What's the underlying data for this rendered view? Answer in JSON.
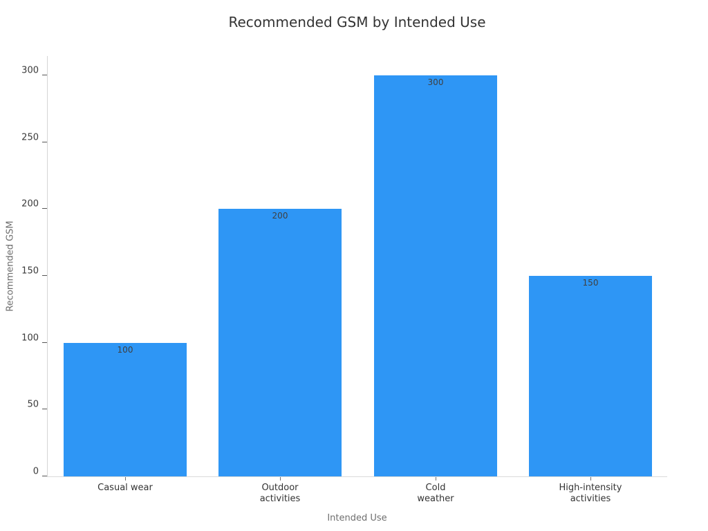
{
  "figure": {
    "background_color": "#ffffff"
  },
  "chart_data": {
    "type": "bar",
    "title": "Recommended GSM by Intended Use",
    "xlabel": "Intended Use",
    "ylabel": "Recommended GSM",
    "categories": [
      "Casual wear",
      "Outdoor\nactivities",
      "Cold\nweather",
      "High-intensity\nactivities"
    ],
    "values": [
      100,
      200,
      300,
      150
    ],
    "bar_labels": [
      "100",
      "200",
      "300",
      "150"
    ],
    "yticks": [
      0,
      50,
      100,
      150,
      200,
      250,
      300
    ],
    "ylim": [
      0,
      315
    ],
    "grid": false,
    "legend": "none",
    "bar_color": "#2E96F5",
    "value_label_color": "#3f3f3f",
    "tick_label_color": "#3a3a3a",
    "axis_label_color": "#6e6e6e",
    "title_color": "#333333"
  }
}
